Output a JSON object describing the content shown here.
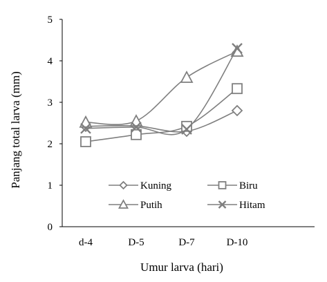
{
  "chart_data": {
    "type": "line",
    "categories": [
      "d-4",
      "D-5",
      "D-7",
      "D-10"
    ],
    "series": [
      {
        "name": "Kuning",
        "marker": "diamond",
        "values": [
          2.42,
          2.43,
          2.3,
          2.8
        ]
      },
      {
        "name": "Biru",
        "marker": "square",
        "values": [
          2.05,
          2.22,
          2.42,
          3.33
        ]
      },
      {
        "name": "Putih",
        "marker": "triangle",
        "values": [
          2.52,
          2.55,
          3.6,
          4.23
        ]
      },
      {
        "name": "Hitam",
        "marker": "x",
        "values": [
          2.37,
          2.4,
          2.35,
          4.3
        ]
      }
    ],
    "title": "",
    "xlabel": "Umur larva (hari)",
    "ylabel": "Panjang total larva (mm)",
    "ylim": [
      0,
      5
    ],
    "yticks": [
      "0",
      "1",
      "2",
      "3",
      "4",
      "5"
    ],
    "grid": false,
    "legend": "inside-bottom-center",
    "line_color": "#7f7f7f"
  }
}
